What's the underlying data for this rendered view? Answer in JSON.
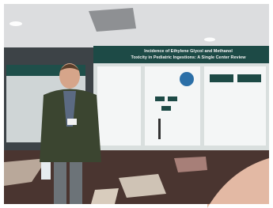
{
  "poster": {
    "title_line1": "Incidence of Ethylene Glycol and Methanol",
    "title_line2": "Toxicity in Pediatric Ingestions: A Single Center Review"
  }
}
